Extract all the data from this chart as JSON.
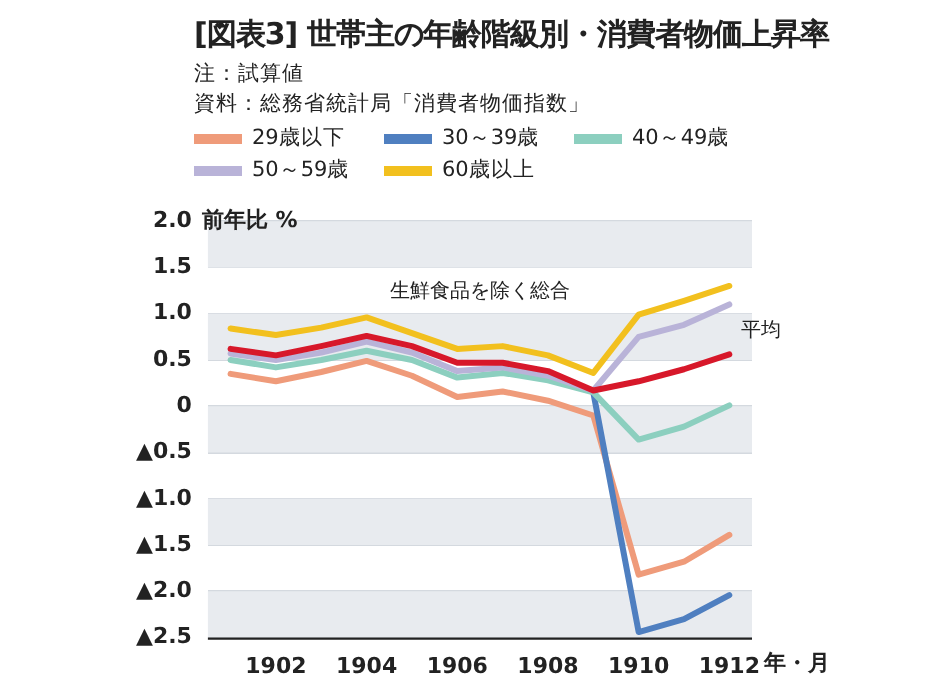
{
  "chart_data": {
    "type": "line",
    "title": "[図表3] 世帯主の年齢階級別・消費者物価上昇率",
    "annotations": [
      "注：試算値",
      "資料：総務省統計局「消費者物価指数」",
      {
        "text": "生鮮食品を除く総合"
      },
      {
        "text": "平均",
        "x": "1912",
        "y": 0.56
      }
    ],
    "ylabel": "前年比 %",
    "xlabel": "年・月",
    "categories": [
      null,
      "1902",
      null,
      "1904",
      null,
      "1906",
      null,
      "1908",
      null,
      "1910",
      null,
      "1912"
    ],
    "series": [
      {
        "name": "29歳以下",
        "color": "#ef9b7a",
        "values": [
          0.35,
          0.27,
          0.37,
          0.49,
          0.33,
          0.1,
          0.16,
          0.06,
          -0.1,
          -1.82,
          -1.68,
          -1.39
        ]
      },
      {
        "name": "30～39歳",
        "color": "#4f7fc0",
        "values": [
          null,
          null,
          null,
          null,
          null,
          null,
          null,
          null,
          0.15,
          -2.44,
          -2.3,
          -2.04
        ]
      },
      {
        "name": "40～49歳",
        "color": "#8ccfbf",
        "values": [
          0.5,
          0.42,
          0.5,
          0.6,
          0.5,
          0.31,
          0.36,
          0.28,
          0.15,
          -0.36,
          -0.22,
          0.01
        ]
      },
      {
        "name": "50～59歳",
        "color": "#b9b3d8",
        "values": [
          0.57,
          0.5,
          0.58,
          0.7,
          0.58,
          0.38,
          0.42,
          0.33,
          0.17,
          0.75,
          0.88,
          1.1
        ]
      },
      {
        "name": "60歳以上",
        "color": "#f2c01e",
        "values": [
          0.84,
          0.77,
          0.85,
          0.96,
          0.79,
          0.62,
          0.65,
          0.55,
          0.36,
          0.99,
          1.14,
          1.3
        ]
      },
      {
        "color": "#d7182a",
        "values": [
          0.62,
          0.55,
          0.65,
          0.76,
          0.65,
          0.47,
          0.47,
          0.38,
          0.17,
          0.27,
          0.4,
          0.56
        ]
      }
    ],
    "ylim": [
      -2.5,
      2.0
    ],
    "yticks": [
      {
        "value": 2,
        "label": "2.0"
      },
      {
        "value": 1.5,
        "label": "1.5"
      },
      {
        "value": 1,
        "label": "1.0"
      },
      {
        "value": 0.5,
        "label": "0.5"
      },
      0,
      {
        "value": -0.5,
        "label": "▲0.5"
      },
      {
        "value": -1,
        "label": "▲1.0"
      },
      {
        "value": -1.5,
        "label": "▲1.5"
      },
      {
        "value": -2,
        "label": "▲2.0"
      },
      {
        "value": -2.5,
        "label": "▲2.5"
      }
    ],
    "grid": "y",
    "legend": "top",
    "marker": "none",
    "line_style": "solid"
  }
}
